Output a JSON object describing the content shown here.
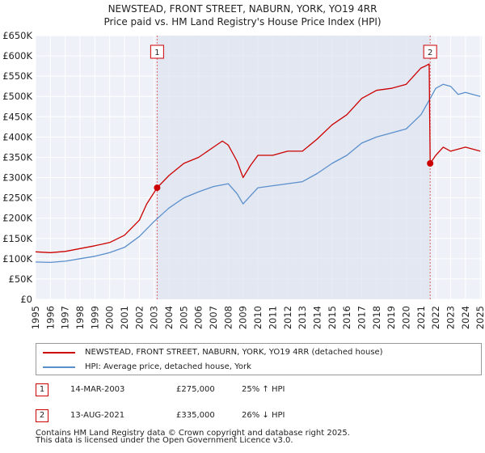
{
  "chart_data": {
    "type": "line",
    "title": "NEWSTEAD, FRONT STREET, NABURN, YORK, YO19 4RR",
    "subtitle": "Price paid vs. HM Land Registry's House Price Index (HPI)",
    "xlabel": "",
    "ylabel": "",
    "xlim": [
      1995,
      2025.1
    ],
    "ylim": [
      0,
      650000
    ],
    "x_ticks": [
      "1995",
      "1996",
      "1997",
      "1998",
      "1999",
      "2000",
      "2001",
      "2002",
      "2003",
      "2004",
      "2005",
      "2006",
      "2007",
      "2008",
      "2009",
      "2010",
      "2011",
      "2012",
      "2013",
      "2014",
      "2015",
      "2016",
      "2017",
      "2018",
      "2019",
      "2020",
      "2021",
      "2022",
      "2023",
      "2024",
      "2025"
    ],
    "y_ticks": [
      "£0",
      "£50K",
      "£100K",
      "£150K",
      "£200K",
      "£250K",
      "£300K",
      "£350K",
      "£400K",
      "£450K",
      "£500K",
      "£550K",
      "£600K",
      "£650K"
    ],
    "y_tick_values": [
      0,
      50000,
      100000,
      150000,
      200000,
      250000,
      300000,
      350000,
      400000,
      450000,
      500000,
      550000,
      600000,
      650000
    ],
    "grid": true,
    "series": [
      {
        "name": "NEWSTEAD, FRONT STREET, NABURN, YORK, YO19 4RR (detached house)",
        "color": "#cc0000",
        "x": [
          1995,
          1996,
          1997,
          1998,
          1999,
          2000,
          2001,
          2002,
          2002.5,
          2003.2,
          2004,
          2005,
          2006,
          2007,
          2007.6,
          2008,
          2008.6,
          2009,
          2009.5,
          2010,
          2011,
          2012,
          2013,
          2014,
          2015,
          2016,
          2017,
          2018,
          2019,
          2020,
          2020.5,
          2021,
          2021.3,
          2021.55,
          2021.62,
          2022,
          2022.5,
          2023,
          2023.5,
          2024,
          2024.5,
          2025
        ],
        "values": [
          117000,
          115000,
          118000,
          125000,
          132000,
          140000,
          158000,
          195000,
          235000,
          275000,
          305000,
          335000,
          350000,
          375000,
          390000,
          380000,
          340000,
          300000,
          330000,
          355000,
          355000,
          365000,
          365000,
          395000,
          430000,
          455000,
          495000,
          515000,
          520000,
          530000,
          550000,
          570000,
          575000,
          580000,
          335000,
          355000,
          375000,
          365000,
          370000,
          375000,
          370000,
          365000
        ]
      },
      {
        "name": "HPI: Average price, detached house, York",
        "color": "#5b8fcc",
        "x": [
          1995,
          1996,
          1997,
          1998,
          1999,
          2000,
          2001,
          2002,
          2003,
          2004,
          2005,
          2006,
          2007,
          2008,
          2008.6,
          2009,
          2009.5,
          2010,
          2011,
          2012,
          2013,
          2014,
          2015,
          2016,
          2017,
          2018,
          2019,
          2020,
          2021,
          2021.62,
          2022,
          2022.5,
          2023,
          2023.5,
          2024,
          2024.5,
          2025
        ],
        "values": [
          92000,
          91000,
          94000,
          100000,
          106000,
          115000,
          128000,
          155000,
          192000,
          225000,
          250000,
          265000,
          278000,
          285000,
          260000,
          235000,
          255000,
          275000,
          280000,
          285000,
          290000,
          310000,
          335000,
          355000,
          385000,
          400000,
          410000,
          420000,
          455000,
          495000,
          520000,
          530000,
          525000,
          505000,
          510000,
          505000,
          500000
        ]
      }
    ],
    "annotations": [
      {
        "label": "1",
        "x": 2003.2,
        "value": 275000
      },
      {
        "label": "2",
        "x": 2021.62,
        "value": 335000
      }
    ]
  },
  "legend": {
    "items": [
      {
        "label": "NEWSTEAD, FRONT STREET, NABURN, YORK, YO19 4RR (detached house)",
        "color": "#cc0000"
      },
      {
        "label": "HPI: Average price, detached house, York",
        "color": "#5b8fcc"
      }
    ]
  },
  "sales": [
    {
      "num": "1",
      "date": "14-MAR-2003",
      "price": "£275,000",
      "hpi": "25% ↑ HPI"
    },
    {
      "num": "2",
      "date": "13-AUG-2021",
      "price": "£335,000",
      "hpi": "26% ↓ HPI"
    }
  ],
  "footer": {
    "line1": "Contains HM Land Registry data © Crown copyright and database right 2025.",
    "line2": "This data is licensed under the Open Government Licence v3.0."
  }
}
